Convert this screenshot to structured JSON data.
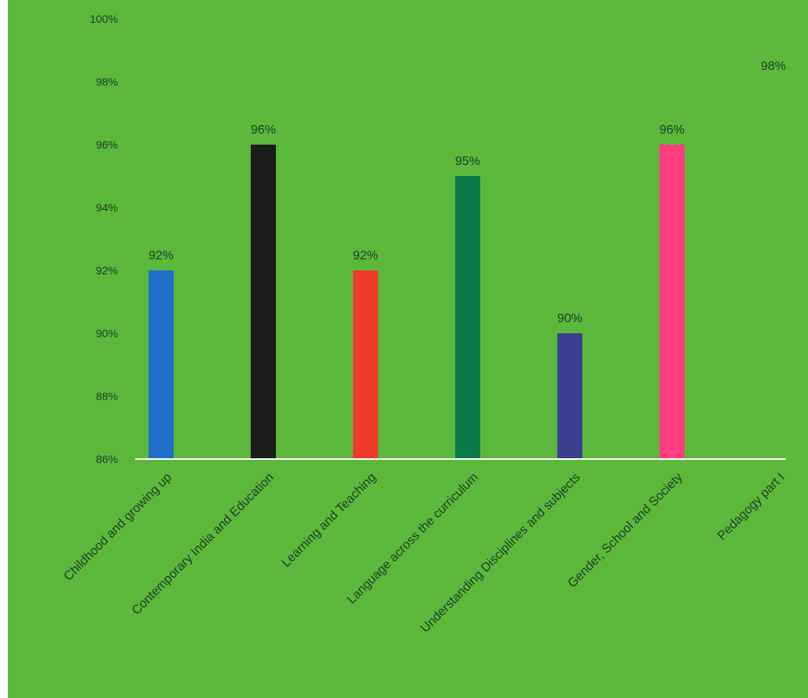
{
  "chart_data": {
    "type": "bar",
    "title": "",
    "xlabel": "",
    "ylabel": "",
    "ylim": [
      86,
      100
    ],
    "y_ticks": [
      "86%",
      "88%",
      "90%",
      "92%",
      "94%",
      "96%",
      "98%",
      "100%"
    ],
    "categories": [
      "Childhood and growing up",
      "Contemporary India and Education",
      "Learning and Teaching",
      "Language across the curriculum",
      "Understanding Disciplines and subjects",
      "Gender, School and Society",
      "Pedagogy part I"
    ],
    "values": [
      92,
      96,
      92,
      95,
      90,
      96,
      98
    ],
    "value_labels": [
      "92%",
      "96%",
      "92%",
      "95%",
      "90%",
      "96%",
      "98%"
    ],
    "bar_colors": [
      "#1f6fc8",
      "#1b1b1b",
      "#ef3b2c",
      "#0b7a4b",
      "#3a3f8f",
      "#ff3d7f",
      "#5cb83a"
    ],
    "background": "#5cb83a",
    "axis_color": "#ffffff",
    "grid": false,
    "legend": "none"
  }
}
